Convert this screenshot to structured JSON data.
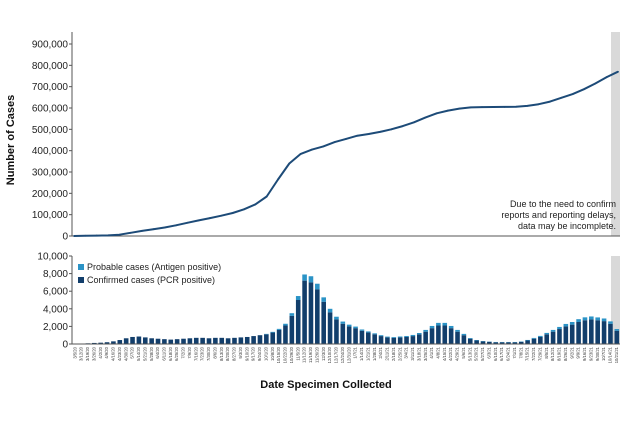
{
  "chart_data": [
    {
      "type": "line",
      "ylabel": "Number of Cases",
      "ylim": [
        0,
        900000
      ],
      "yticks": [
        "0",
        "100,000",
        "200,000",
        "300,000",
        "400,000",
        "500,000",
        "600,000",
        "700,000",
        "800,000",
        "900,000"
      ],
      "series": [
        {
          "values": [
            0,
            1000,
            2000,
            3000,
            6000,
            15000,
            24000,
            32000,
            40000,
            50000,
            62000,
            73000,
            84000,
            95000,
            108000,
            125000,
            148000,
            185000,
            265000,
            340000,
            385000,
            405000,
            420000,
            440000,
            455000,
            470000,
            478000,
            488000,
            500000,
            515000,
            533000,
            555000,
            575000,
            588000,
            597000,
            603000,
            604000,
            604500,
            605000,
            606000,
            610000,
            618000,
            630000,
            648000,
            665000,
            688000,
            715000,
            745000,
            770000
          ]
        }
      ],
      "color": "#1d4b78",
      "shaded_region": "last ~2 weeks",
      "annotation": [
        "Due to the need to confirm",
        "reports and reporting delays,",
        "data may be incomplete."
      ]
    },
    {
      "type": "bar",
      "stacked": true,
      "ylim": [
        0,
        10000
      ],
      "yticks": [
        "0",
        "2,000",
        "4,000",
        "6,000",
        "8,000",
        "10,000"
      ],
      "xlabel": "Date Specimen Collected",
      "x_tick_labels": [
        "3/5/20",
        "3/12/20",
        "3/19/20",
        "3/26/20",
        "4/2/20",
        "4/9/20",
        "4/16/20",
        "4/23/20",
        "4/30/20",
        "5/7/20",
        "5/14/20",
        "5/21/20",
        "5/28/20",
        "6/4/20",
        "6/11/20",
        "6/18/20",
        "6/25/20",
        "7/2/20",
        "7/9/20",
        "7/16/20",
        "7/23/20",
        "7/30/20",
        "8/6/20",
        "8/13/20",
        "8/20/20",
        "8/27/20",
        "9/3/20",
        "9/10/20",
        "9/17/20",
        "9/24/20",
        "10/1/20",
        "10/8/20",
        "10/15/20",
        "10/22/20",
        "10/29/20",
        "11/5/20",
        "11/12/20",
        "11/19/20",
        "11/26/20",
        "12/3/20",
        "12/10/20",
        "12/17/20",
        "12/24/20",
        "12/31/20",
        "1/7/21",
        "1/14/21",
        "1/21/21",
        "1/28/21",
        "2/4/21",
        "2/11/21",
        "2/18/21",
        "2/25/21",
        "3/4/21",
        "3/11/21",
        "3/18/21",
        "3/25/21",
        "4/1/21",
        "4/8/21",
        "4/15/21",
        "4/22/21",
        "4/29/21",
        "5/6/21",
        "5/13/21",
        "5/20/21",
        "5/27/21",
        "6/3/21",
        "6/10/21",
        "6/17/21",
        "6/24/21",
        "7/1/21",
        "7/8/21",
        "7/15/21",
        "7/22/21",
        "7/29/21",
        "8/5/21",
        "8/12/21",
        "8/19/21",
        "8/26/21",
        "9/2/21",
        "9/9/21",
        "9/16/21",
        "9/23/21",
        "9/30/21",
        "10/7/21",
        "10/14/21",
        "10/21/21"
      ],
      "series": [
        {
          "name": "Confirmed cases (PCR positive)",
          "color": "#123e6b",
          "values": [
            20,
            40,
            80,
            120,
            150,
            200,
            300,
            450,
            650,
            800,
            850,
            750,
            650,
            600,
            550,
            500,
            550,
            600,
            650,
            700,
            700,
            650,
            700,
            700,
            650,
            700,
            750,
            800,
            900,
            1000,
            1100,
            1300,
            1600,
            2100,
            3200,
            5000,
            7200,
            7000,
            6200,
            4800,
            3600,
            2800,
            2300,
            2000,
            1800,
            1500,
            1300,
            1100,
            900,
            750,
            700,
            750,
            800,
            900,
            1100,
            1400,
            1800,
            2100,
            2100,
            1800,
            1400,
            1000,
            600,
            400,
            300,
            250,
            200,
            200,
            200,
            200,
            250,
            400,
            600,
            800,
            1100,
            1400,
            1700,
            2000,
            2200,
            2500,
            2700,
            2800,
            2700,
            2600,
            2300,
            1500
          ]
        },
        {
          "name": "Probable cases (Antigen positive)",
          "color": "#2b93c6",
          "values": [
            0,
            0,
            0,
            0,
            0,
            0,
            0,
            0,
            0,
            0,
            0,
            0,
            0,
            0,
            0,
            0,
            0,
            0,
            0,
            0,
            0,
            0,
            0,
            0,
            0,
            0,
            0,
            0,
            0,
            0,
            50,
            80,
            120,
            200,
            300,
            450,
            700,
            700,
            650,
            500,
            400,
            300,
            250,
            200,
            180,
            150,
            130,
            110,
            100,
            90,
            90,
            100,
            110,
            130,
            150,
            200,
            250,
            300,
            300,
            250,
            200,
            150,
            80,
            50,
            40,
            30,
            30,
            30,
            30,
            30,
            40,
            60,
            90,
            120,
            160,
            200,
            240,
            280,
            300,
            320,
            330,
            330,
            320,
            300,
            270,
            200
          ]
        }
      ],
      "legend_position": "top-left"
    }
  ]
}
